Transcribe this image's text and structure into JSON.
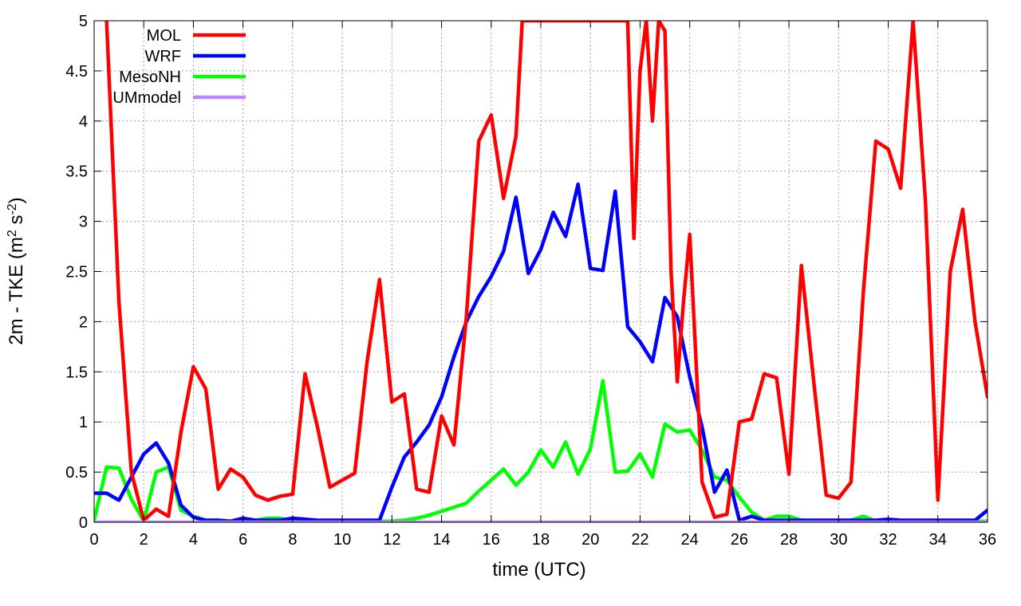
{
  "chart_data": {
    "type": "line",
    "xlabel": "time (UTC)",
    "ylabel_parts": {
      "prefix": "2m - TKE (m",
      "sup1": "2",
      "middle": " s",
      "sup2": "-2",
      "suffix": ")"
    },
    "xlim": [
      0,
      36
    ],
    "ylim": [
      0,
      5
    ],
    "xticks": [
      0,
      2,
      4,
      6,
      8,
      10,
      12,
      14,
      16,
      18,
      20,
      22,
      24,
      26,
      28,
      30,
      32,
      34,
      36
    ],
    "xtick_labels": [
      "0",
      "2",
      "4",
      "6",
      "8",
      "10",
      "12",
      "14",
      "16",
      "18",
      "20",
      "22",
      "24",
      "26",
      "28",
      "30",
      "32",
      "34",
      "36"
    ],
    "yticks": [
      0,
      0.5,
      1,
      1.5,
      2,
      2.5,
      3,
      3.5,
      4,
      4.5,
      5
    ],
    "ytick_labels": [
      "0",
      "0.5",
      "1",
      "1.5",
      "2",
      "2.5",
      "3",
      "3.5",
      "4",
      "4.5",
      "5"
    ],
    "grid": true,
    "legend_position": "top-left",
    "series": [
      {
        "name": "MOL",
        "color": "#ff0000",
        "x": [
          0.5,
          1,
          1.5,
          2,
          2.5,
          3,
          3.5,
          4,
          4.5,
          5,
          5.5,
          6,
          6.5,
          7,
          7.5,
          8,
          8.5,
          9,
          9.5,
          10,
          10.5,
          11,
          11.5,
          12,
          12.5,
          13,
          13.5,
          14,
          14.5,
          15,
          15.5,
          16,
          16.5,
          17,
          17.25,
          21.5,
          21.75,
          22,
          22.25,
          22.5,
          22.75,
          23,
          23.25,
          23.5,
          23.75,
          24,
          24.5,
          25,
          25.5,
          26,
          26.5,
          27,
          27.5,
          28,
          28.5,
          29,
          29.5,
          30,
          30.5,
          31,
          31.5,
          32,
          32.5,
          33,
          33.5,
          34,
          34.5,
          35,
          35.5,
          36
        ],
        "y": [
          5.0,
          2.2,
          0.5,
          0.02,
          0.13,
          0.06,
          0.9,
          1.55,
          1.33,
          0.33,
          0.53,
          0.45,
          0.27,
          0.22,
          0.26,
          0.28,
          1.48,
          0.95,
          0.35,
          0.42,
          0.49,
          1.6,
          2.42,
          1.2,
          1.28,
          0.33,
          0.3,
          1.06,
          0.77,
          2.05,
          3.8,
          4.06,
          3.23,
          3.85,
          5.0,
          5.0,
          2.83,
          4.5,
          5.0,
          4.0,
          5.0,
          4.9,
          2.5,
          1.4,
          2.2,
          2.87,
          0.4,
          0.05,
          0.08,
          1.0,
          1.03,
          1.48,
          1.44,
          0.48,
          2.56,
          1.4,
          0.27,
          0.24,
          0.4,
          2.3,
          3.8,
          3.72,
          3.33,
          5.0,
          3.2,
          0.22,
          2.5,
          3.12,
          2.0,
          1.25
        ]
      },
      {
        "name": "WRF",
        "color": "#0000ff",
        "x": [
          0,
          0.5,
          1,
          1.5,
          2,
          2.5,
          3,
          3.5,
          4,
          4.5,
          5,
          5.5,
          6,
          6.5,
          7,
          7.5,
          8,
          8.5,
          9,
          9.5,
          10,
          10.5,
          11,
          11.5,
          12,
          12.5,
          13,
          13.5,
          14,
          14.5,
          15,
          15.5,
          16,
          16.5,
          17,
          17.5,
          18,
          18.5,
          19,
          19.5,
          20,
          20.5,
          21,
          21.5,
          22,
          22.5,
          23,
          23.5,
          24,
          24.5,
          25,
          25.5,
          26,
          26.5,
          27,
          27.5,
          28,
          28.5,
          29,
          29.5,
          30,
          30.5,
          31,
          31.5,
          32,
          32.5,
          33,
          33.5,
          34,
          34.5,
          35,
          35.5,
          36
        ],
        "y": [
          0.29,
          0.29,
          0.22,
          0.45,
          0.68,
          0.79,
          0.59,
          0.17,
          0.05,
          0.02,
          0.02,
          0.01,
          0.04,
          0.02,
          0.02,
          0.02,
          0.04,
          0.03,
          0.02,
          0.02,
          0.02,
          0.02,
          0.02,
          0.02,
          0.35,
          0.65,
          0.8,
          0.97,
          1.25,
          1.65,
          2.0,
          2.25,
          2.45,
          2.7,
          3.24,
          2.48,
          2.72,
          3.09,
          2.85,
          3.37,
          2.53,
          2.51,
          3.3,
          1.95,
          1.8,
          1.6,
          2.24,
          2.05,
          1.45,
          0.95,
          0.3,
          0.52,
          0.02,
          0.06,
          0.02,
          0.02,
          0.02,
          0.02,
          0.02,
          0.02,
          0.02,
          0.02,
          0.02,
          0.02,
          0.03,
          0.02,
          0.02,
          0.02,
          0.02,
          0.02,
          0.02,
          0.02,
          0.12
        ]
      },
      {
        "name": "MesoNH",
        "color": "#00ff00",
        "x": [
          0,
          0.5,
          1,
          1.5,
          2,
          2.5,
          3,
          3.5,
          4,
          4.5,
          5,
          5.5,
          6,
          6.5,
          7,
          7.5,
          8,
          8.5,
          9,
          9.5,
          10,
          10.5,
          11,
          11.5,
          12,
          12.5,
          13,
          13.5,
          14,
          14.5,
          15,
          15.5,
          16,
          16.5,
          17,
          17.5,
          18,
          18.5,
          19,
          19.5,
          20,
          20.5,
          21,
          21.5,
          22,
          22.5,
          23,
          23.5,
          24,
          24.5,
          25,
          25.5,
          26,
          26.5,
          27,
          27.5,
          28,
          28.5,
          29,
          29.5,
          30,
          30.5,
          31,
          31.5,
          32,
          32.5,
          33,
          33.5,
          34,
          34.5,
          35,
          35.5,
          36
        ],
        "y": [
          0.02,
          0.55,
          0.54,
          0.23,
          0.01,
          0.5,
          0.55,
          0.12,
          0.06,
          0.02,
          0.02,
          0.01,
          0.02,
          0.02,
          0.04,
          0.04,
          0.01,
          0.01,
          0.01,
          0.01,
          0.01,
          0.01,
          0.01,
          0.01,
          0.01,
          0.02,
          0.04,
          0.07,
          0.11,
          0.15,
          0.19,
          0.31,
          0.42,
          0.53,
          0.37,
          0.5,
          0.72,
          0.55,
          0.8,
          0.48,
          0.73,
          1.41,
          0.5,
          0.51,
          0.68,
          0.45,
          0.98,
          0.9,
          0.92,
          0.72,
          0.45,
          0.42,
          0.25,
          0.1,
          0.02,
          0.06,
          0.06,
          0.02,
          0.01,
          0.01,
          0.01,
          0.02,
          0.06,
          0.01,
          0.01,
          0.01,
          0.01,
          0.01,
          0.01,
          0.01,
          0.01,
          0.01,
          0.01
        ]
      },
      {
        "name": "UMmodel",
        "color": "#bb88ff",
        "x": [
          0,
          36
        ],
        "y": [
          0,
          0
        ]
      }
    ]
  }
}
